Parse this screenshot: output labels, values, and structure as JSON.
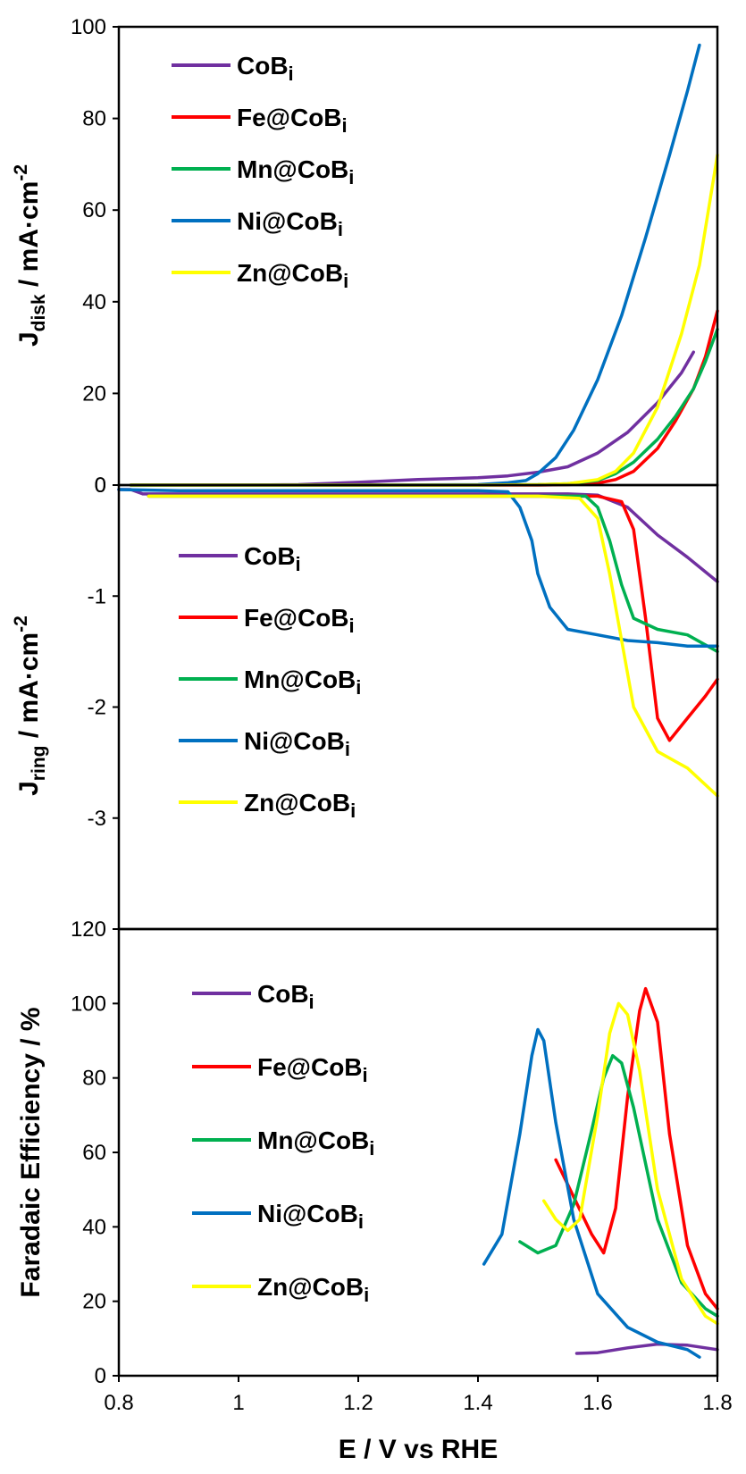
{
  "chart_data": [
    {
      "type": "line",
      "ylabel_main": "J",
      "ylabel_sub": "disk",
      "ylabel_rest": " / mA·cm",
      "ylabel_sup": "-2",
      "xlim": [
        0.8,
        1.8
      ],
      "ylim": [
        0,
        100
      ],
      "yticks": [
        "0",
        "20",
        "40",
        "60",
        "80",
        "100"
      ],
      "legend_position": "top-left",
      "series": [
        {
          "name": "CoB",
          "sub": "i",
          "color": "#7030a0",
          "x": [
            0.82,
            0.9,
            1.0,
            1.1,
            1.2,
            1.3,
            1.4,
            1.45,
            1.5,
            1.55,
            1.6,
            1.65,
            1.7,
            1.74,
            1.76
          ],
          "y": [
            0,
            0,
            0,
            0.1,
            0.6,
            1.2,
            1.6,
            2.0,
            2.8,
            4.0,
            7.0,
            11.5,
            18.0,
            24.5,
            29.0
          ]
        },
        {
          "name": "Fe@CoB",
          "sub": "i",
          "color": "#ff0000",
          "x": [
            0.82,
            1.0,
            1.2,
            1.4,
            1.5,
            1.55,
            1.6,
            1.63,
            1.66,
            1.7,
            1.73,
            1.76,
            1.78,
            1.8
          ],
          "y": [
            0,
            0,
            0,
            0,
            0,
            0.1,
            0.4,
            1.2,
            3.0,
            8.0,
            14.0,
            21.0,
            28.0,
            38.0
          ]
        },
        {
          "name": "Mn@CoB",
          "sub": "i",
          "color": "#00b050",
          "x": [
            0.82,
            1.0,
            1.2,
            1.4,
            1.5,
            1.55,
            1.6,
            1.63,
            1.66,
            1.7,
            1.73,
            1.76,
            1.78,
            1.8
          ],
          "y": [
            0,
            0,
            0,
            0,
            0.1,
            0.3,
            1.0,
            2.5,
            5.0,
            10.0,
            15.0,
            21.0,
            27.0,
            34.0
          ]
        },
        {
          "name": "Ni@CoB",
          "sub": "i",
          "color": "#0070c0",
          "x": [
            0.82,
            1.0,
            1.2,
            1.4,
            1.45,
            1.48,
            1.5,
            1.53,
            1.56,
            1.6,
            1.64,
            1.68,
            1.72,
            1.75,
            1.77
          ],
          "y": [
            0,
            0,
            0,
            0.1,
            0.5,
            1.0,
            2.5,
            6.0,
            12.0,
            23.0,
            37.0,
            54.0,
            72.0,
            86.0,
            96.0
          ]
        },
        {
          "name": "Zn@CoB",
          "sub": "i",
          "color": "#ffff00",
          "x": [
            0.82,
            1.0,
            1.2,
            1.4,
            1.5,
            1.55,
            1.6,
            1.63,
            1.66,
            1.7,
            1.74,
            1.77,
            1.8
          ],
          "y": [
            0,
            0,
            0,
            0,
            0.1,
            0.3,
            1.2,
            3.0,
            7.0,
            17.0,
            33.0,
            48.0,
            72.0
          ]
        }
      ]
    },
    {
      "type": "line",
      "ylabel_main": "J",
      "ylabel_sub": "ring",
      "ylabel_rest": " / mA·cm",
      "ylabel_sup": "-2",
      "xlim": [
        0.8,
        1.8
      ],
      "ylim": [
        -4,
        0
      ],
      "yticks": [
        "0",
        "-1",
        "-2",
        "-3"
      ],
      "legend_position": "left",
      "series": [
        {
          "name": "CoB",
          "sub": "i",
          "color": "#7030a0",
          "x": [
            0.8,
            0.82,
            0.84,
            0.9,
            1.0,
            1.2,
            1.4,
            1.5,
            1.55,
            1.6,
            1.65,
            1.7,
            1.75,
            1.8
          ],
          "y": [
            -0.04,
            -0.04,
            -0.08,
            -0.08,
            -0.08,
            -0.08,
            -0.08,
            -0.08,
            -0.08,
            -0.09,
            -0.2,
            -0.45,
            -0.65,
            -0.87
          ]
        },
        {
          "name": "Fe@CoB",
          "sub": "i",
          "color": "#ff0000",
          "x": [
            0.85,
            1.0,
            1.2,
            1.4,
            1.5,
            1.6,
            1.64,
            1.66,
            1.68,
            1.7,
            1.72,
            1.75,
            1.78,
            1.8
          ],
          "y": [
            -0.1,
            -0.1,
            -0.1,
            -0.1,
            -0.1,
            -0.1,
            -0.15,
            -0.4,
            -1.2,
            -2.1,
            -2.3,
            -2.1,
            -1.9,
            -1.75
          ]
        },
        {
          "name": "Mn@CoB",
          "sub": "i",
          "color": "#00b050",
          "x": [
            0.85,
            1.0,
            1.2,
            1.4,
            1.5,
            1.58,
            1.6,
            1.62,
            1.64,
            1.66,
            1.7,
            1.75,
            1.8
          ],
          "y": [
            -0.1,
            -0.1,
            -0.1,
            -0.1,
            -0.1,
            -0.1,
            -0.2,
            -0.5,
            -0.9,
            -1.2,
            -1.3,
            -1.35,
            -1.5
          ]
        },
        {
          "name": "Ni@CoB",
          "sub": "i",
          "color": "#0070c0",
          "x": [
            0.8,
            0.9,
            1.0,
            1.2,
            1.4,
            1.45,
            1.47,
            1.49,
            1.5,
            1.52,
            1.55,
            1.6,
            1.65,
            1.7,
            1.75,
            1.8
          ],
          "y": [
            -0.04,
            -0.05,
            -0.05,
            -0.05,
            -0.05,
            -0.06,
            -0.2,
            -0.5,
            -0.8,
            -1.1,
            -1.3,
            -1.35,
            -1.4,
            -1.42,
            -1.45,
            -1.45
          ]
        },
        {
          "name": "Zn@CoB",
          "sub": "i",
          "color": "#ffff00",
          "x": [
            0.85,
            1.0,
            1.2,
            1.4,
            1.5,
            1.57,
            1.6,
            1.62,
            1.64,
            1.66,
            1.7,
            1.75,
            1.8
          ],
          "y": [
            -0.1,
            -0.1,
            -0.1,
            -0.1,
            -0.1,
            -0.12,
            -0.3,
            -0.8,
            -1.4,
            -2.0,
            -2.4,
            -2.55,
            -2.8
          ]
        }
      ]
    },
    {
      "type": "line",
      "ylabel_text": "Faradaic Efficiency / %",
      "xlabel": "E / V vs RHE",
      "xlim": [
        0.8,
        1.8
      ],
      "ylim": [
        0,
        120
      ],
      "yticks": [
        "0",
        "20",
        "40",
        "60",
        "80",
        "100",
        "120"
      ],
      "xticks": [
        "0.8",
        "1",
        "1.2",
        "1.4",
        "1.6",
        "1.8"
      ],
      "legend_position": "top-left",
      "series": [
        {
          "name": "CoB",
          "sub": "i",
          "color": "#7030a0",
          "x": [
            1.565,
            1.6,
            1.65,
            1.7,
            1.75,
            1.8
          ],
          "y": [
            6.0,
            6.2,
            7.5,
            8.5,
            8.2,
            7.0
          ]
        },
        {
          "name": "Fe@CoB",
          "sub": "i",
          "color": "#ff0000",
          "x": [
            1.53,
            1.56,
            1.59,
            1.61,
            1.63,
            1.65,
            1.67,
            1.68,
            1.7,
            1.72,
            1.75,
            1.78,
            1.8
          ],
          "y": [
            58,
            48,
            38,
            33,
            45,
            75,
            98,
            104,
            95,
            65,
            35,
            22,
            18
          ]
        },
        {
          "name": "Mn@CoB",
          "sub": "i",
          "color": "#00b050",
          "x": [
            1.47,
            1.5,
            1.53,
            1.56,
            1.59,
            1.61,
            1.625,
            1.64,
            1.66,
            1.7,
            1.74,
            1.78,
            1.8
          ],
          "y": [
            36,
            33,
            35,
            46,
            66,
            80,
            86,
            84,
            72,
            42,
            25,
            18,
            16
          ]
        },
        {
          "name": "Ni@CoB",
          "sub": "i",
          "color": "#0070c0",
          "x": [
            1.41,
            1.44,
            1.47,
            1.49,
            1.5,
            1.51,
            1.53,
            1.56,
            1.6,
            1.65,
            1.7,
            1.75,
            1.77
          ],
          "y": [
            30,
            38,
            65,
            86,
            93,
            90,
            68,
            42,
            22,
            13,
            9,
            7,
            5
          ]
        },
        {
          "name": "Zn@CoB",
          "sub": "i",
          "color": "#ffff00",
          "x": [
            1.51,
            1.53,
            1.55,
            1.57,
            1.6,
            1.62,
            1.635,
            1.65,
            1.67,
            1.7,
            1.74,
            1.78,
            1.8
          ],
          "y": [
            47,
            42,
            39,
            42,
            70,
            92,
            100,
            97,
            82,
            50,
            26,
            16,
            14
          ]
        }
      ]
    }
  ]
}
